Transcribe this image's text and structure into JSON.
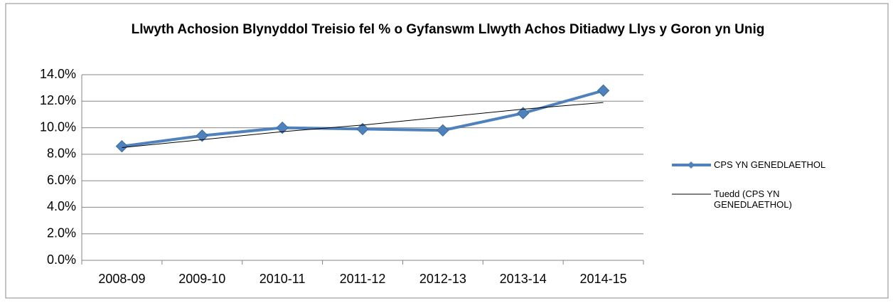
{
  "chart_data": {
    "type": "line",
    "title": "Llwyth Achosion Blynyddol Treisio fel % o Gyfanswm Llwyth Achos Ditiadwy Llys y Goron yn Unig",
    "categories": [
      "2008-09",
      "2009-10",
      "2010-11",
      "2011-12",
      "2012-13",
      "2013-14",
      "2014-15"
    ],
    "series": [
      {
        "name": "CPS YN GENEDLAETHOL",
        "color": "#4f81bd",
        "values": [
          8.6,
          9.4,
          10.0,
          9.9,
          9.8,
          11.1,
          12.8
        ]
      },
      {
        "name": "Tuedd (CPS YN GENEDLAETHOL)",
        "color": "#000000",
        "values": [
          8.5,
          9.1,
          9.7,
          10.2,
          10.8,
          11.4,
          11.9
        ]
      }
    ],
    "ylim": [
      0,
      14
    ],
    "yticks": [
      {
        "value": 0,
        "label": "0.0%"
      },
      {
        "value": 2,
        "label": "2.0%"
      },
      {
        "value": 4,
        "label": "4.0%"
      },
      {
        "value": 6,
        "label": "6.0%"
      },
      {
        "value": 8,
        "label": "8.0%"
      },
      {
        "value": 10,
        "label": "10.0%"
      },
      {
        "value": 12,
        "label": "12.0%"
      },
      {
        "value": 14,
        "label": "14.0%"
      }
    ],
    "grid": true,
    "legend": "right"
  }
}
